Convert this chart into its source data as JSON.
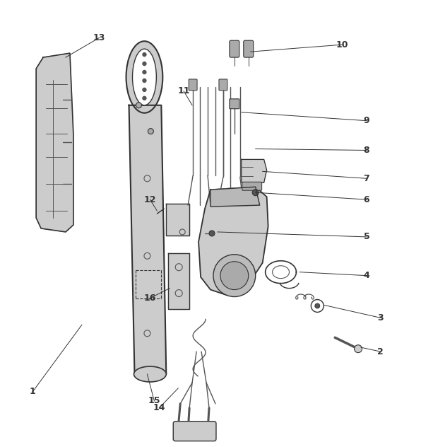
{
  "bg_color": "#ffffff",
  "line_color": "#333333",
  "dark_gray": "#555555",
  "light_gray": "#cccccc",
  "mid_gray": "#aaaaaa",
  "label_data": [
    [
      "1",
      45,
      555,
      115,
      460
    ],
    [
      "2",
      540,
      498,
      512,
      492
    ],
    [
      "3",
      540,
      450,
      460,
      432
    ],
    [
      "4",
      520,
      390,
      425,
      385
    ],
    [
      "5",
      520,
      335,
      308,
      328
    ],
    [
      "6",
      520,
      282,
      362,
      272
    ],
    [
      "7",
      520,
      252,
      372,
      242
    ],
    [
      "8",
      520,
      212,
      362,
      210
    ],
    [
      "9",
      520,
      170,
      342,
      158
    ],
    [
      "10",
      485,
      62,
      355,
      72
    ],
    [
      "11",
      260,
      128,
      272,
      148
    ],
    [
      "12",
      212,
      282,
      222,
      298
    ],
    [
      "13",
      140,
      52,
      92,
      80
    ],
    [
      "14",
      225,
      578,
      252,
      550
    ],
    [
      "15",
      218,
      568,
      208,
      530
    ],
    [
      "16",
      212,
      422,
      240,
      408
    ]
  ]
}
